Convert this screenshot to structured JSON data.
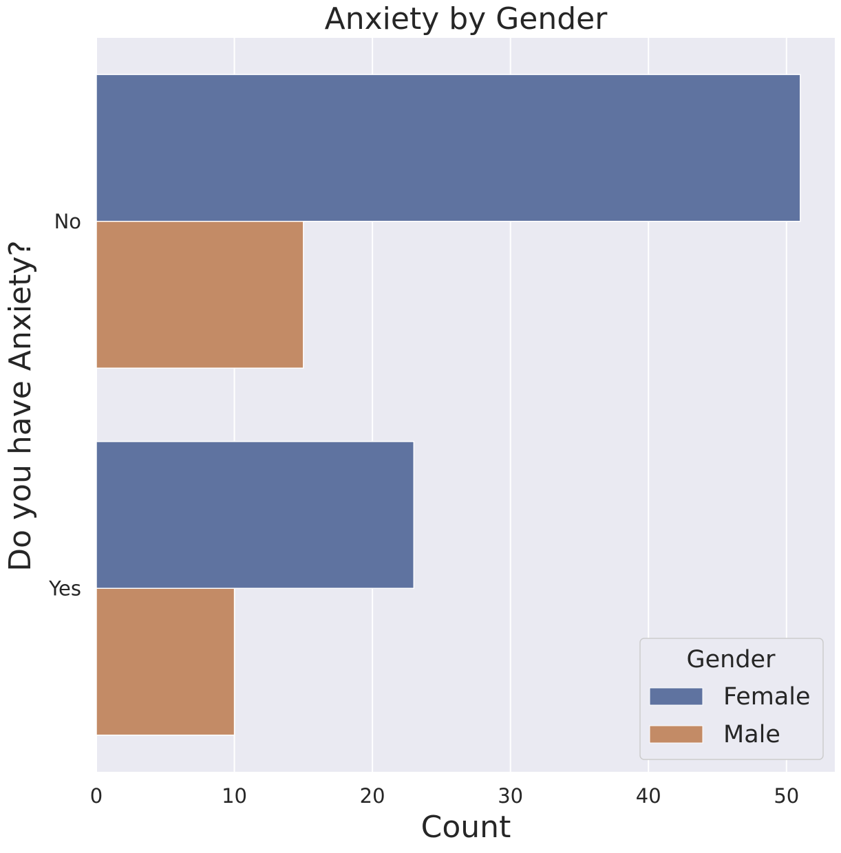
{
  "chart_data": {
    "type": "bar",
    "orientation": "horizontal",
    "title": "Anxiety by Gender",
    "xlabel": "Count",
    "ylabel": "Do you have Anxiety?",
    "categories": [
      "No",
      "Yes"
    ],
    "series": [
      {
        "name": "Female",
        "values": [
          51,
          23
        ],
        "color": "#5f73a0"
      },
      {
        "name": "Male",
        "values": [
          15,
          10
        ],
        "color": "#c38b66"
      }
    ],
    "xlim": [
      0,
      53.5
    ],
    "xticks": [
      "0",
      "10",
      "20",
      "30",
      "40",
      "50"
    ],
    "grid": true,
    "legend": {
      "title": "Gender",
      "placement": "lower-right"
    },
    "colors": {
      "plot_background": "#eaeaf2",
      "grid": "#ffffff",
      "text": "#262626"
    }
  }
}
